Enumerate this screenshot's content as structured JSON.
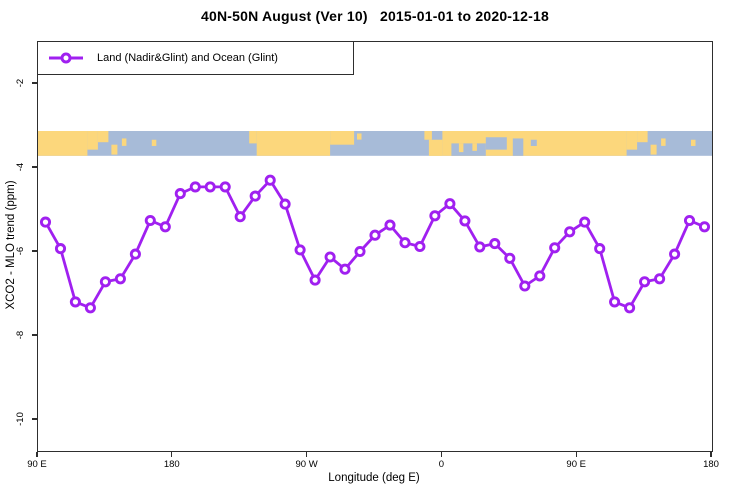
{
  "title": "40N-50N August (Ver 10)   2015-01-01 to 2020-12-18",
  "legend": {
    "label": "Land (Nadir&Glint) and Ocean (Glint)"
  },
  "colors": {
    "series": "#A020F0",
    "marker_fill": "#ffffff",
    "land": "#FCD77C",
    "ocean": "#A7BBD8",
    "frame": "#2e2e2e"
  },
  "chart_data": {
    "type": "line",
    "title": "40N-50N August (Ver 10)   2015-01-01 to 2020-12-18",
    "xlabel": "Longitude (deg E)",
    "ylabel": "XCO2 - MLO trend (ppm)",
    "xlim": [
      90,
      540
    ],
    "ylim": [
      -10.74,
      -1.0
    ],
    "grid": false,
    "legend_position": "top-left",
    "x_ticks": [
      {
        "lon": 90,
        "label": "90 E"
      },
      {
        "lon": 180,
        "label": "180"
      },
      {
        "lon": 270,
        "label": "90 W"
      },
      {
        "lon": 360,
        "label": "0"
      },
      {
        "lon": 450,
        "label": "90 E"
      },
      {
        "lon": 540,
        "label": "180"
      }
    ],
    "y_ticks": [
      {
        "value": -2,
        "label": "-2"
      },
      {
        "value": -4,
        "label": "-4"
      },
      {
        "value": -6,
        "label": "-6"
      },
      {
        "value": -8,
        "label": "-8"
      },
      {
        "value": -10,
        "label": "-10"
      }
    ],
    "series": [
      {
        "name": "Land (Nadir&Glint) and Ocean (Glint)",
        "color": "#A020F0",
        "marker": "open-circle",
        "x": [
          95,
          105,
          115,
          125,
          135,
          145,
          155,
          165,
          175,
          185,
          195,
          205,
          215,
          225,
          235,
          245,
          255,
          265,
          275,
          285,
          295,
          305,
          315,
          325,
          335,
          345,
          355,
          365,
          375,
          385,
          395,
          405,
          415,
          425,
          435,
          445,
          455,
          465,
          475,
          485,
          495,
          505,
          515,
          525,
          535
        ],
        "y": [
          -5.29,
          -5.92,
          -7.19,
          -7.33,
          -6.71,
          -6.64,
          -6.05,
          -5.25,
          -5.4,
          -4.61,
          -4.45,
          -4.45,
          -4.45,
          -5.16,
          -4.67,
          -4.29,
          -4.86,
          -5.95,
          -6.67,
          -6.12,
          -6.41,
          -5.99,
          -5.6,
          -5.36,
          -5.78,
          -5.87,
          -5.14,
          -4.85,
          -5.26,
          -5.88,
          -5.8,
          -6.15,
          -6.81,
          -6.57,
          -5.9,
          -5.52,
          -5.29,
          -5.92,
          -7.19,
          -7.33,
          -6.71,
          -6.64,
          -6.05,
          -5.25,
          -5.4
        ]
      }
    ],
    "map_band": {
      "description": "world coastline ribbon for 40N-50N",
      "value_top": -3.12,
      "value_bottom": -3.71,
      "segments": [
        {
          "lon0": 90,
          "lon1": 123,
          "top": 0,
          "bottom": 1,
          "fill": "land"
        },
        {
          "lon0": 123,
          "lon1": 130,
          "top": 0,
          "bottom": 0.75,
          "fill": "land"
        },
        {
          "lon0": 130,
          "lon1": 137,
          "top": 0,
          "bottom": 0.45,
          "fill": "land"
        },
        {
          "lon0": 139,
          "lon1": 143,
          "top": 0.55,
          "bottom": 0.95,
          "fill": "land"
        },
        {
          "lon0": 146,
          "lon1": 149,
          "top": 0.3,
          "bottom": 0.6,
          "fill": "land"
        },
        {
          "lon0": 166,
          "lon1": 169,
          "top": 0.35,
          "bottom": 0.6,
          "fill": "land"
        },
        {
          "lon0": 231,
          "lon1": 236,
          "top": 0,
          "bottom": 0.5,
          "fill": "land"
        },
        {
          "lon0": 236,
          "lon1": 285,
          "top": 0,
          "bottom": 1,
          "fill": "land"
        },
        {
          "lon0": 285,
          "lon1": 301,
          "top": 0,
          "bottom": 0.55,
          "fill": "land"
        },
        {
          "lon0": 303,
          "lon1": 306,
          "top": 0.1,
          "bottom": 0.35,
          "fill": "land"
        },
        {
          "lon0": 348,
          "lon1": 353,
          "top": 0,
          "bottom": 0.35,
          "fill": "land"
        },
        {
          "lon0": 351,
          "lon1": 360,
          "top": 0.35,
          "bottom": 1,
          "fill": "land"
        },
        {
          "lon0": 360,
          "lon1": 483,
          "top": 0,
          "bottom": 1,
          "fill": "land"
        },
        {
          "lon0": 366,
          "lon1": 389,
          "top": 0.5,
          "bottom": 1,
          "fill": "ocean"
        },
        {
          "lon0": 371,
          "lon1": 374,
          "top": 0.5,
          "bottom": 0.85,
          "fill": "land"
        },
        {
          "lon0": 380,
          "lon1": 383,
          "top": 0.5,
          "bottom": 0.8,
          "fill": "land"
        },
        {
          "lon0": 389,
          "lon1": 403,
          "top": 0.25,
          "bottom": 0.75,
          "fill": "ocean"
        },
        {
          "lon0": 407,
          "lon1": 414,
          "top": 0.3,
          "bottom": 1,
          "fill": "ocean"
        },
        {
          "lon0": 419,
          "lon1": 423,
          "top": 0.35,
          "bottom": 0.6,
          "fill": "ocean"
        },
        {
          "lon0": 483,
          "lon1": 490,
          "top": 0,
          "bottom": 0.75,
          "fill": "land"
        },
        {
          "lon0": 490,
          "lon1": 497,
          "top": 0,
          "bottom": 0.45,
          "fill": "land"
        },
        {
          "lon0": 499,
          "lon1": 503,
          "top": 0.55,
          "bottom": 0.95,
          "fill": "land"
        },
        {
          "lon0": 506,
          "lon1": 509,
          "top": 0.3,
          "bottom": 0.6,
          "fill": "land"
        },
        {
          "lon0": 526,
          "lon1": 529,
          "top": 0.35,
          "bottom": 0.6,
          "fill": "land"
        }
      ]
    }
  }
}
